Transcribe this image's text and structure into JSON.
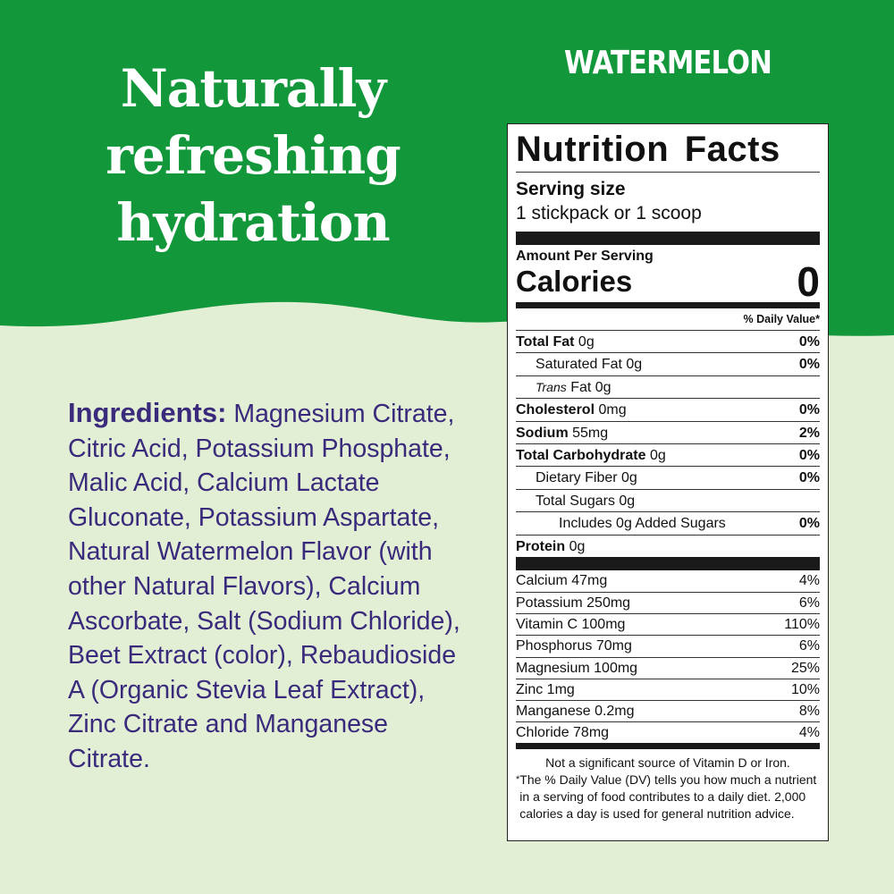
{
  "colors": {
    "green": "#13973b",
    "light_green": "#e2efd5",
    "purple": "#3a2a7c"
  },
  "headline": [
    "Naturally",
    "refreshing",
    "hydration"
  ],
  "flavor": "WATERMELON",
  "ingredients": {
    "heading": "Ingredients:",
    "text": " Magnesium Citrate, Citric Acid, Potassium Phosphate, Malic Acid, Calcium Lactate Gluconate, Potassium Aspartate, Natural Watermelon Flavor (with other Natural Flavors), Calcium Ascorbate, Salt (Sodium Chloride), Beet Extract (color), Rebaudioside A (Organic Stevia Leaf Extract), Zinc Citrate and Manganese Citrate."
  },
  "label": {
    "title": "Nutrition Facts",
    "serving_label": "Serving size",
    "serving_value": "1 stickpack or 1 scoop",
    "amount_per": "Amount Per Serving",
    "calories_label": "Calories",
    "calories": "0",
    "dv_header": "% Daily Value*",
    "nutrients": [
      {
        "name": "Total Fat",
        "amt": " 0g",
        "dv": "0%"
      },
      {
        "name": "Saturated Fat 0g",
        "dv": "0%"
      },
      {
        "name": "Trans",
        "amt": " Fat 0g",
        "dv": ""
      },
      {
        "name": "Cholesterol",
        "amt": " 0mg",
        "dv": "0%"
      },
      {
        "name": "Sodium",
        "amt": " 55mg",
        "dv": "2%"
      },
      {
        "name": "Total Carbohydrate",
        "amt": " 0g",
        "dv": "0%"
      },
      {
        "name": "Dietary Fiber 0g",
        "dv": "0%"
      },
      {
        "name": "Total Sugars 0g",
        "dv": ""
      },
      {
        "name": "Includes 0g Added Sugars",
        "dv": "0%"
      },
      {
        "name": "Protein",
        "amt": " 0g",
        "dv": ""
      }
    ],
    "vitamins": [
      {
        "name": "Calcium 47mg",
        "dv": "4%"
      },
      {
        "name": "Potassium 250mg",
        "dv": "6%"
      },
      {
        "name": "Vitamin C 100mg",
        "dv": "110%"
      },
      {
        "name": "Phosphorus 70mg",
        "dv": "6%"
      },
      {
        "name": "Magnesium 100mg",
        "dv": "25%"
      },
      {
        "name": "Zinc 1mg",
        "dv": "10%"
      },
      {
        "name": "Manganese 0.2mg",
        "dv": "8%"
      },
      {
        "name": "Chloride 78mg",
        "dv": "4%"
      }
    ],
    "note1": "Not a significant source of Vitamin D or Iron.",
    "note_star": "*",
    "note2": "The % Daily Value (DV) tells you how much a nutrient in a serving of food contributes to a daily diet. 2,000 calories a day is used for general nutrition advice."
  }
}
